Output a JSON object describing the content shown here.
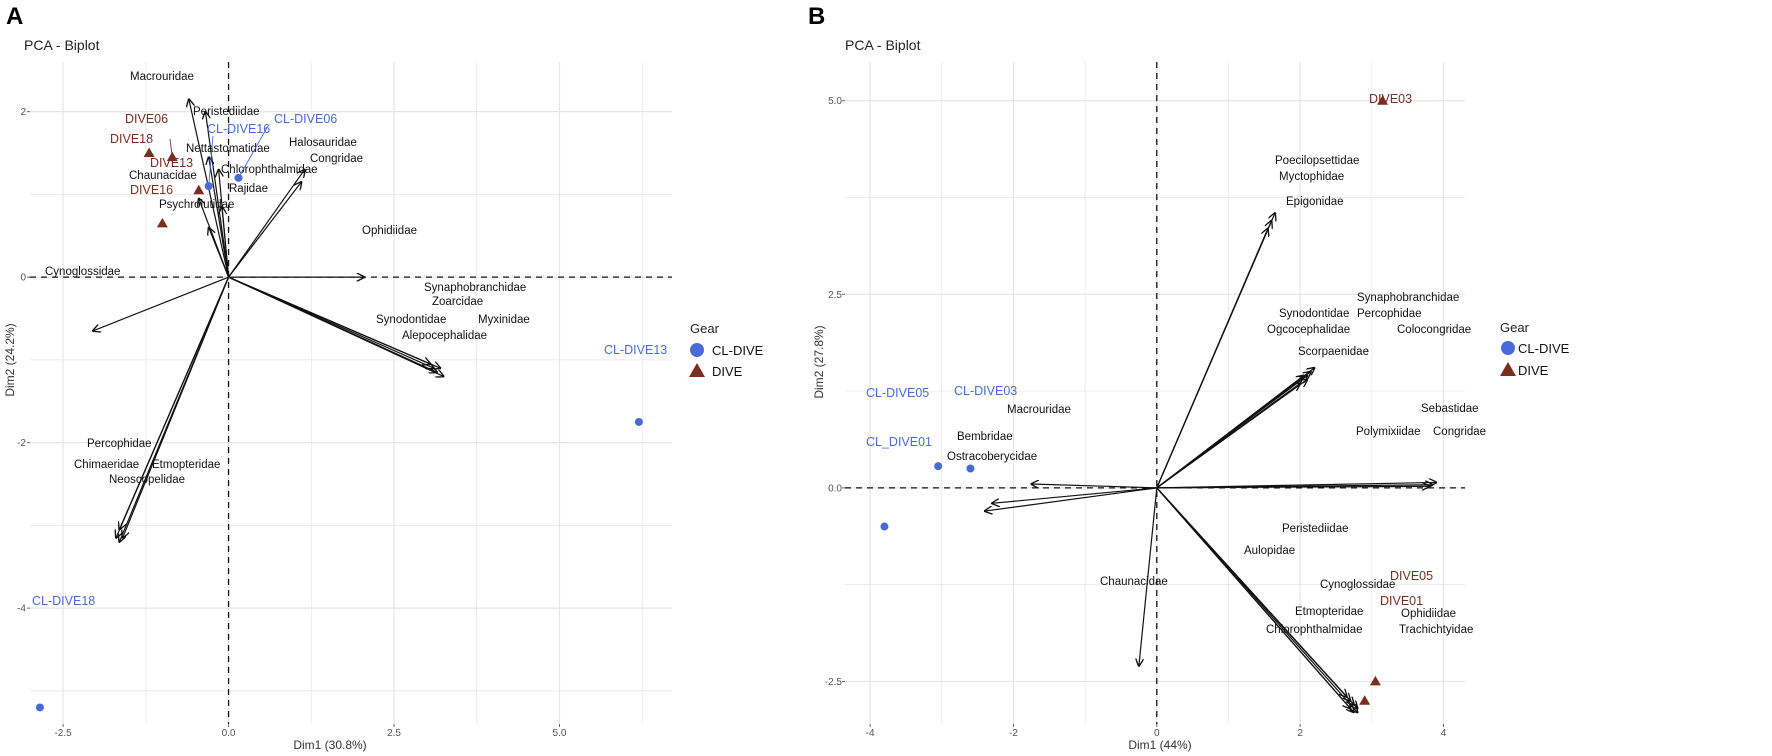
{
  "colors": {
    "cl_dive": "#4a6ad8",
    "dive": "#7a2e1e",
    "grid": "#e6e6e6",
    "arrow": "#111111"
  },
  "legend": {
    "title": "Gear",
    "items": [
      {
        "label": "CL-DIVE",
        "shape": "circle",
        "color": "#4a6ad8"
      },
      {
        "label": "DIVE",
        "shape": "triangle",
        "color": "#7a2e1e"
      }
    ]
  },
  "chart_data": [
    {
      "type": "scatter",
      "panel": "A",
      "title": "PCA - Biplot",
      "xlabel": "Dim1 (30.8%)",
      "ylabel": "Dim2 (24.2%)",
      "xlim": [
        -3.0,
        6.7
      ],
      "ylim": [
        -5.4,
        2.6
      ],
      "xticks": [
        {
          "v": -2.5,
          "label": "-2.5"
        },
        {
          "v": 0,
          "label": "0.0"
        },
        {
          "v": 2.5,
          "label": "2.5"
        },
        {
          "v": 5,
          "label": "5.0"
        }
      ],
      "yticks": [
        {
          "v": 2,
          "label": "2"
        },
        {
          "v": 0,
          "label": "0"
        },
        {
          "v": -2,
          "label": "-2"
        },
        {
          "v": -4,
          "label": "-4"
        }
      ],
      "grid": true,
      "legend_position": "right",
      "variables": [
        {
          "name": "Macrouridae",
          "x": -0.6,
          "y": 2.15
        },
        {
          "name": "Peristediidae",
          "x": -0.35,
          "y": 2.0
        },
        {
          "name": "Nettastomatidae",
          "x": -0.3,
          "y": 1.45
        },
        {
          "name": "Chlorophthalmidae",
          "x": -0.15,
          "y": 1.3
        },
        {
          "name": "Halosauridae",
          "x": 1.15,
          "y": 1.3
        },
        {
          "name": "Congridae",
          "x": 1.1,
          "y": 1.15
        },
        {
          "name": "Chaunacidae",
          "x": -0.45,
          "y": 0.95
        },
        {
          "name": "Rajidae",
          "x": -0.1,
          "y": 0.85
        },
        {
          "name": "Psychrolutidae",
          "x": -0.3,
          "y": 0.6
        },
        {
          "name": "Ophidiidae",
          "x": 2.05,
          "y": 0.0
        },
        {
          "name": "Cynoglossidae",
          "x": -2.05,
          "y": -0.65
        },
        {
          "name": "Synaphobranchidae",
          "x": 3.05,
          "y": -1.05
        },
        {
          "name": "Zoarcidae",
          "x": 3.1,
          "y": -1.1
        },
        {
          "name": "Synodontidae",
          "x": 3.15,
          "y": -1.15
        },
        {
          "name": "Myxinidae",
          "x": 3.2,
          "y": -1.1
        },
        {
          "name": "Alepocephalidae",
          "x": 3.25,
          "y": -1.2
        },
        {
          "name": "Percophidae",
          "x": -1.65,
          "y": -3.05
        },
        {
          "name": "Chimaeridae",
          "x": -1.7,
          "y": -3.15
        },
        {
          "name": "Etmopteridae",
          "x": -1.6,
          "y": -3.15
        },
        {
          "name": "Neoscopelidae",
          "x": -1.65,
          "y": -3.2
        }
      ],
      "individuals": [
        {
          "name": "DIVE06",
          "gear": "DIVE",
          "x": -1.2,
          "y": 1.5
        },
        {
          "name": "DIVE18",
          "gear": "DIVE",
          "x": -0.85,
          "y": 1.45
        },
        {
          "name": "DIVE13",
          "gear": "DIVE",
          "x": -0.45,
          "y": 1.05
        },
        {
          "name": "DIVE16",
          "gear": "DIVE",
          "x": -1.0,
          "y": 0.65
        },
        {
          "name": "CL-DIVE16",
          "gear": "CL-DIVE",
          "x": -0.3,
          "y": 1.1
        },
        {
          "name": "CL-DIVE06",
          "gear": "CL-DIVE",
          "x": 0.15,
          "y": 1.2
        },
        {
          "name": "CL-DIVE13",
          "gear": "CL-DIVE",
          "x": 6.2,
          "y": -1.75
        },
        {
          "name": "CL-DIVE18",
          "gear": "CL-DIVE",
          "x": -2.85,
          "y": -5.2
        }
      ]
    },
    {
      "type": "scatter",
      "panel": "B",
      "title": "PCA - Biplot",
      "xlabel": "Dim1 (44%)",
      "ylabel": "Dim2 (27.8%)",
      "xlim": [
        -4.35,
        4.3
      ],
      "ylim": [
        -3.05,
        5.5
      ],
      "xticks": [
        {
          "v": -4,
          "label": "-4"
        },
        {
          "v": -2,
          "label": "-2"
        },
        {
          "v": 0,
          "label": "0"
        },
        {
          "v": 2,
          "label": "2"
        },
        {
          "v": 4,
          "label": "4"
        }
      ],
      "yticks": [
        {
          "v": 5,
          "label": "5.0"
        },
        {
          "v": 2.5,
          "label": "2.5"
        },
        {
          "v": 0,
          "label": "0.0"
        },
        {
          "v": -2.5,
          "label": "-2.5"
        }
      ],
      "grid": true,
      "legend_position": "right",
      "variables": [
        {
          "name": "Poecilopsettidae",
          "x": 1.65,
          "y": 3.55
        },
        {
          "name": "Myctophidae",
          "x": 1.6,
          "y": 3.45
        },
        {
          "name": "Epigonidae",
          "x": 1.55,
          "y": 3.35
        },
        {
          "name": "Synaphobranchidae",
          "x": 2.2,
          "y": 1.55
        },
        {
          "name": "Synodontidae",
          "x": 2.15,
          "y": 1.5
        },
        {
          "name": "Percophidae",
          "x": 2.1,
          "y": 1.45
        },
        {
          "name": "Ogcocephalidae",
          "x": 2.05,
          "y": 1.45
        },
        {
          "name": "Colocongridae",
          "x": 2.1,
          "y": 1.4
        },
        {
          "name": "Scorpaenidae",
          "x": 2.0,
          "y": 1.35
        },
        {
          "name": "Sebastidae",
          "x": 3.9,
          "y": 0.07
        },
        {
          "name": "Polymixiidae",
          "x": 3.85,
          "y": 0.04
        },
        {
          "name": "Congridae",
          "x": 3.8,
          "y": 0.02
        },
        {
          "name": "Macrouridae",
          "x": -1.75,
          "y": 0.05
        },
        {
          "name": "Bembridae",
          "x": -2.3,
          "y": -0.2
        },
        {
          "name": "Ostracoberycidae",
          "x": -2.4,
          "y": -0.3
        },
        {
          "name": "Chaunacidae",
          "x": -0.25,
          "y": -2.3
        },
        {
          "name": "Peristediidae",
          "x": 2.65,
          "y": -2.7
        },
        {
          "name": "Aulopidae",
          "x": 2.7,
          "y": -2.75
        },
        {
          "name": "Cynoglossidae",
          "x": 2.75,
          "y": -2.8
        },
        {
          "name": "Ophidiidae",
          "x": 2.8,
          "y": -2.85
        },
        {
          "name": "Etmopteridae",
          "x": 2.7,
          "y": -2.85
        },
        {
          "name": "Chlorophthalmidae",
          "x": 2.75,
          "y": -2.9
        },
        {
          "name": "Trachichtyidae",
          "x": 2.8,
          "y": -2.9
        }
      ],
      "individuals": [
        {
          "name": "DIVE03",
          "gear": "DIVE",
          "x": 3.15,
          "y": 5.0
        },
        {
          "name": "DIVE05",
          "gear": "DIVE",
          "x": 3.05,
          "y": -2.5
        },
        {
          "name": "DIVE01",
          "gear": "DIVE",
          "x": 2.9,
          "y": -2.75
        },
        {
          "name": "CL-DIVE05",
          "gear": "CL-DIVE",
          "x": -3.05,
          "y": 0.28
        },
        {
          "name": "CL-DIVE03",
          "gear": "CL-DIVE",
          "x": -2.6,
          "y": 0.25
        },
        {
          "name": "CL_DIVE01",
          "gear": "CL-DIVE",
          "x": -3.8,
          "y": -0.5
        }
      ]
    }
  ]
}
